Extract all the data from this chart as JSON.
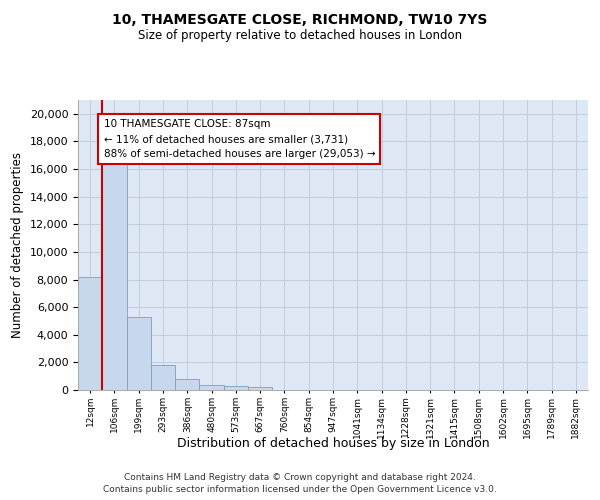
{
  "title_line1": "10, THAMESGATE CLOSE, RICHMOND, TW10 7YS",
  "title_line2": "Size of property relative to detached houses in London",
  "xlabel": "Distribution of detached houses by size in London",
  "ylabel": "Number of detached properties",
  "categories": [
    "12sqm",
    "106sqm",
    "199sqm",
    "293sqm",
    "386sqm",
    "480sqm",
    "573sqm",
    "667sqm",
    "760sqm",
    "854sqm",
    "947sqm",
    "1041sqm",
    "1134sqm",
    "1228sqm",
    "1321sqm",
    "1415sqm",
    "1508sqm",
    "1602sqm",
    "1695sqm",
    "1789sqm",
    "1882sqm"
  ],
  "values": [
    8200,
    16600,
    5300,
    1800,
    800,
    350,
    290,
    200,
    0,
    0,
    0,
    0,
    0,
    0,
    0,
    0,
    0,
    0,
    0,
    0,
    0
  ],
  "bar_color": "#c8d8ec",
  "bar_edge_color": "#7a9fc4",
  "bg_color": "#dde8f4",
  "background_color": "#ffffff",
  "grid_color": "#c0cce0",
  "annotation_text_line1": "10 THAMESGATE CLOSE: 87sqm",
  "annotation_text_line2": "← 11% of detached houses are smaller (3,731)",
  "annotation_text_line3": "88% of semi-detached houses are larger (29,053) →",
  "annotation_edge_color": "#cc0000",
  "vline_color": "#cc0000",
  "vline_x": 0.5,
  "ylim": [
    0,
    21000
  ],
  "yticks": [
    0,
    2000,
    4000,
    6000,
    8000,
    10000,
    12000,
    14000,
    16000,
    18000,
    20000
  ],
  "footer_line1": "Contains HM Land Registry data © Crown copyright and database right 2024.",
  "footer_line2": "Contains public sector information licensed under the Open Government Licence v3.0."
}
